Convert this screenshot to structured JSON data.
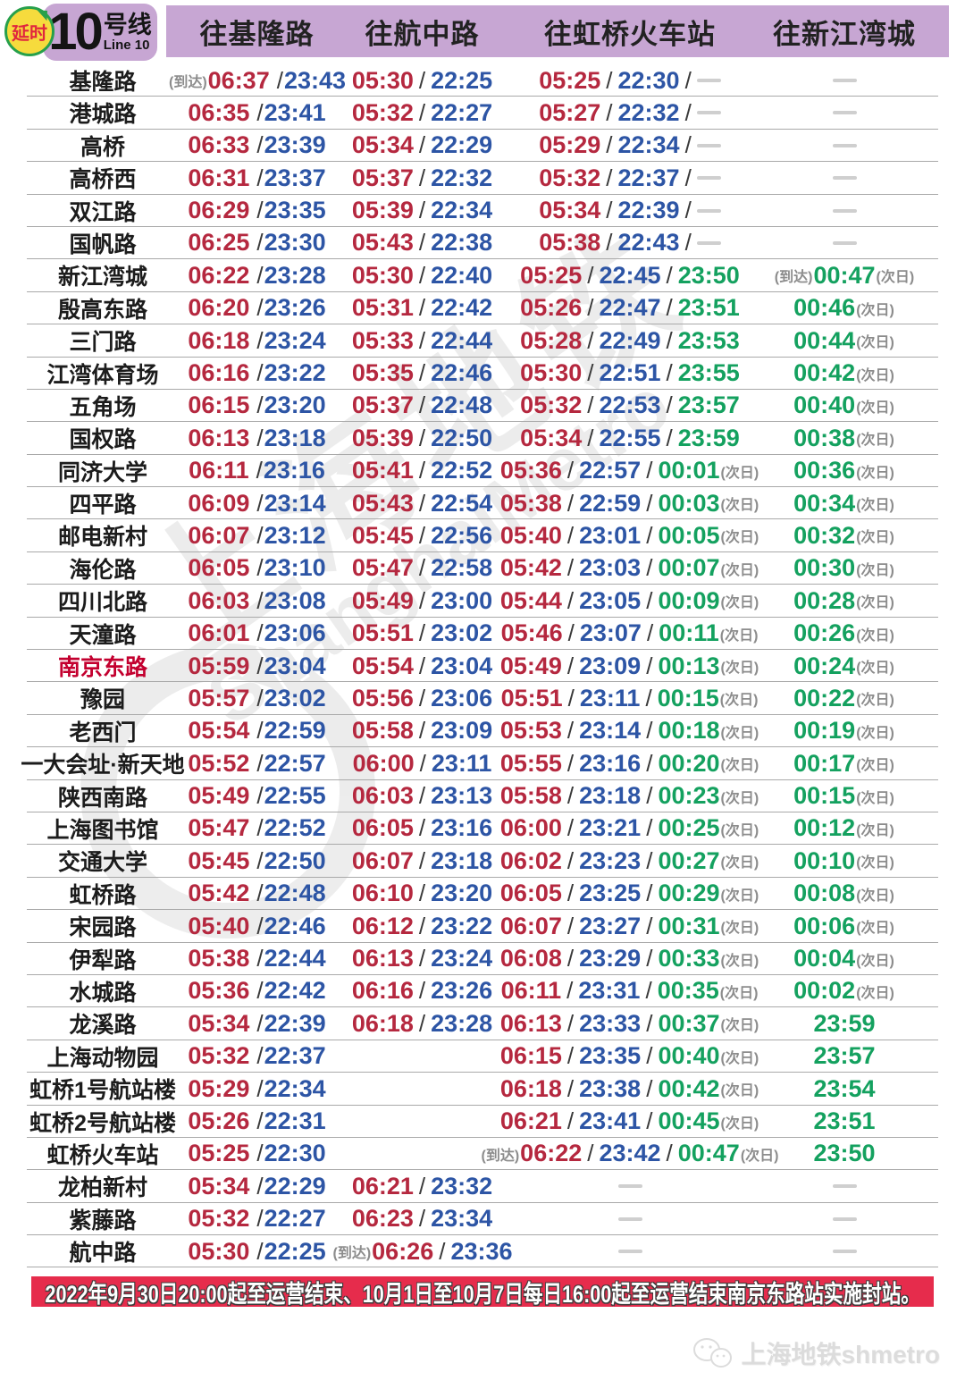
{
  "header": {
    "delay_badge": "延时",
    "line_number": "10",
    "line_name_cn": "号线",
    "line_name_en": "Line 10",
    "directions": {
      "d1": "往基隆路",
      "d2": "往航中路",
      "d3": "往虹桥火车站",
      "d4": "往新江湾城"
    }
  },
  "colors": {
    "line": "#C7A6D3",
    "first": "#B5283F",
    "last": "#2D55A5",
    "ext": "#14A15F",
    "notebg": "#E62C4C",
    "gray": "#8C8C8C"
  },
  "rows": [
    {
      "station": "基隆路",
      "c1": {
        "pre": "(到达)",
        "a": "06:37",
        "b": "23:43"
      },
      "c2": {
        "a": "05:30",
        "b": "22:25"
      },
      "c3": {
        "a": "05:25",
        "b": "22:30",
        "dash": true
      },
      "c4": {
        "dash": true
      }
    },
    {
      "station": "港城路",
      "c1": {
        "a": "06:35",
        "b": "23:41"
      },
      "c2": {
        "a": "05:32",
        "b": "22:27"
      },
      "c3": {
        "a": "05:27",
        "b": "22:32",
        "dash": true
      },
      "c4": {
        "dash": true
      }
    },
    {
      "station": "高桥",
      "c1": {
        "a": "06:33",
        "b": "23:39"
      },
      "c2": {
        "a": "05:34",
        "b": "22:29"
      },
      "c3": {
        "a": "05:29",
        "b": "22:34",
        "dash": true
      },
      "c4": {
        "dash": true
      }
    },
    {
      "station": "高桥西",
      "c1": {
        "a": "06:31",
        "b": "23:37"
      },
      "c2": {
        "a": "05:37",
        "b": "22:32"
      },
      "c3": {
        "a": "05:32",
        "b": "22:37",
        "dash": true
      },
      "c4": {
        "dash": true
      }
    },
    {
      "station": "双江路",
      "c1": {
        "a": "06:29",
        "b": "23:35"
      },
      "c2": {
        "a": "05:39",
        "b": "22:34"
      },
      "c3": {
        "a": "05:34",
        "b": "22:39",
        "dash": true
      },
      "c4": {
        "dash": true
      }
    },
    {
      "station": "国帆路",
      "c1": {
        "a": "06:25",
        "b": "23:30"
      },
      "c2": {
        "a": "05:43",
        "b": "22:38"
      },
      "c3": {
        "a": "05:38",
        "b": "22:43",
        "dash": true
      },
      "c4": {
        "dash": true
      }
    },
    {
      "station": "新江湾城",
      "c1": {
        "a": "06:22",
        "b": "23:28"
      },
      "c2": {
        "a": "05:30",
        "b": "22:40"
      },
      "c3": {
        "a": "05:25",
        "b": "22:45",
        "c": "23:50"
      },
      "c4": {
        "pre": "(到达)",
        "t": "00:47",
        "note": "(次日)"
      }
    },
    {
      "station": "殷高东路",
      "c1": {
        "a": "06:20",
        "b": "23:26"
      },
      "c2": {
        "a": "05:31",
        "b": "22:42"
      },
      "c3": {
        "a": "05:26",
        "b": "22:47",
        "c": "23:51"
      },
      "c4": {
        "t": "00:46",
        "note": "(次日)"
      }
    },
    {
      "station": "三门路",
      "c1": {
        "a": "06:18",
        "b": "23:24"
      },
      "c2": {
        "a": "05:33",
        "b": "22:44"
      },
      "c3": {
        "a": "05:28",
        "b": "22:49",
        "c": "23:53"
      },
      "c4": {
        "t": "00:44",
        "note": "(次日)"
      }
    },
    {
      "station": "江湾体育场",
      "c1": {
        "a": "06:16",
        "b": "23:22"
      },
      "c2": {
        "a": "05:35",
        "b": "22:46"
      },
      "c3": {
        "a": "05:30",
        "b": "22:51",
        "c": "23:55"
      },
      "c4": {
        "t": "00:42",
        "note": "(次日)"
      }
    },
    {
      "station": "五角场",
      "c1": {
        "a": "06:15",
        "b": "23:20"
      },
      "c2": {
        "a": "05:37",
        "b": "22:48"
      },
      "c3": {
        "a": "05:32",
        "b": "22:53",
        "c": "23:57"
      },
      "c4": {
        "t": "00:40",
        "note": "(次日)"
      }
    },
    {
      "station": "国权路",
      "c1": {
        "a": "06:13",
        "b": "23:18"
      },
      "c2": {
        "a": "05:39",
        "b": "22:50"
      },
      "c3": {
        "a": "05:34",
        "b": "22:55",
        "c": "23:59"
      },
      "c4": {
        "t": "00:38",
        "note": "(次日)"
      }
    },
    {
      "station": "同济大学",
      "c1": {
        "a": "06:11",
        "b": "23:16"
      },
      "c2": {
        "a": "05:41",
        "b": "22:52"
      },
      "c3": {
        "a": "05:36",
        "b": "22:57",
        "c": "00:01",
        "note": "(次日)"
      },
      "c4": {
        "t": "00:36",
        "note": "(次日)"
      }
    },
    {
      "station": "四平路",
      "c1": {
        "a": "06:09",
        "b": "23:14"
      },
      "c2": {
        "a": "05:43",
        "b": "22:54"
      },
      "c3": {
        "a": "05:38",
        "b": "22:59",
        "c": "00:03",
        "note": "(次日)"
      },
      "c4": {
        "t": "00:34",
        "note": "(次日)"
      }
    },
    {
      "station": "邮电新村",
      "c1": {
        "a": "06:07",
        "b": "23:12"
      },
      "c2": {
        "a": "05:45",
        "b": "22:56"
      },
      "c3": {
        "a": "05:40",
        "b": "23:01",
        "c": "00:05",
        "note": "(次日)"
      },
      "c4": {
        "t": "00:32",
        "note": "(次日)"
      }
    },
    {
      "station": "海伦路",
      "c1": {
        "a": "06:05",
        "b": "23:10"
      },
      "c2": {
        "a": "05:47",
        "b": "22:58"
      },
      "c3": {
        "a": "05:42",
        "b": "23:03",
        "c": "00:07",
        "note": "(次日)"
      },
      "c4": {
        "t": "00:30",
        "note": "(次日)"
      }
    },
    {
      "station": "四川北路",
      "c1": {
        "a": "06:03",
        "b": "23:08"
      },
      "c2": {
        "a": "05:49",
        "b": "23:00"
      },
      "c3": {
        "a": "05:44",
        "b": "23:05",
        "c": "00:09",
        "note": "(次日)"
      },
      "c4": {
        "t": "00:28",
        "note": "(次日)"
      }
    },
    {
      "station": "天潼路",
      "c1": {
        "a": "06:01",
        "b": "23:06"
      },
      "c2": {
        "a": "05:51",
        "b": "23:02"
      },
      "c3": {
        "a": "05:46",
        "b": "23:07",
        "c": "00:11",
        "note": "(次日)"
      },
      "c4": {
        "t": "00:26",
        "note": "(次日)"
      }
    },
    {
      "station": "南京东路",
      "hl": true,
      "c1": {
        "a": "05:59",
        "b": "23:04"
      },
      "c2": {
        "a": "05:54",
        "b": "23:04"
      },
      "c3": {
        "a": "05:49",
        "b": "23:09",
        "c": "00:13",
        "note": "(次日)"
      },
      "c4": {
        "t": "00:24",
        "note": "(次日)"
      }
    },
    {
      "station": "豫园",
      "c1": {
        "a": "05:57",
        "b": "23:02"
      },
      "c2": {
        "a": "05:56",
        "b": "23:06"
      },
      "c3": {
        "a": "05:51",
        "b": "23:11",
        "c": "00:15",
        "note": "(次日)"
      },
      "c4": {
        "t": "00:22",
        "note": "(次日)"
      }
    },
    {
      "station": "老西门",
      "c1": {
        "a": "05:54",
        "b": "22:59"
      },
      "c2": {
        "a": "05:58",
        "b": "23:09"
      },
      "c3": {
        "a": "05:53",
        "b": "23:14",
        "c": "00:18",
        "note": "(次日)"
      },
      "c4": {
        "t": "00:19",
        "note": "(次日)"
      }
    },
    {
      "station": "一大会址·新天地",
      "c1": {
        "a": "05:52",
        "b": "22:57"
      },
      "c2": {
        "a": "06:00",
        "b": "23:11"
      },
      "c3": {
        "a": "05:55",
        "b": "23:16",
        "c": "00:20",
        "note": "(次日)"
      },
      "c4": {
        "t": "00:17",
        "note": "(次日)"
      }
    },
    {
      "station": "陕西南路",
      "c1": {
        "a": "05:49",
        "b": "22:55"
      },
      "c2": {
        "a": "06:03",
        "b": "23:13"
      },
      "c3": {
        "a": "05:58",
        "b": "23:18",
        "c": "00:23",
        "note": "(次日)"
      },
      "c4": {
        "t": "00:15",
        "note": "(次日)"
      }
    },
    {
      "station": "上海图书馆",
      "c1": {
        "a": "05:47",
        "b": "22:52"
      },
      "c2": {
        "a": "06:05",
        "b": "23:16"
      },
      "c3": {
        "a": "06:00",
        "b": "23:21",
        "c": "00:25",
        "note": "(次日)"
      },
      "c4": {
        "t": "00:12",
        "note": "(次日)"
      }
    },
    {
      "station": "交通大学",
      "c1": {
        "a": "05:45",
        "b": "22:50"
      },
      "c2": {
        "a": "06:07",
        "b": "23:18"
      },
      "c3": {
        "a": "06:02",
        "b": "23:23",
        "c": "00:27",
        "note": "(次日)"
      },
      "c4": {
        "t": "00:10",
        "note": "(次日)"
      }
    },
    {
      "station": "虹桥路",
      "c1": {
        "a": "05:42",
        "b": "22:48"
      },
      "c2": {
        "a": "06:10",
        "b": "23:20"
      },
      "c3": {
        "a": "06:05",
        "b": "23:25",
        "c": "00:29",
        "note": "(次日)"
      },
      "c4": {
        "t": "00:08",
        "note": "(次日)"
      }
    },
    {
      "station": "宋园路",
      "c1": {
        "a": "05:40",
        "b": "22:46"
      },
      "c2": {
        "a": "06:12",
        "b": "23:22"
      },
      "c3": {
        "a": "06:07",
        "b": "23:27",
        "c": "00:31",
        "note": "(次日)"
      },
      "c4": {
        "t": "00:06",
        "note": "(次日)"
      }
    },
    {
      "station": "伊犁路",
      "c1": {
        "a": "05:38",
        "b": "22:44"
      },
      "c2": {
        "a": "06:13",
        "b": "23:24"
      },
      "c3": {
        "a": "06:08",
        "b": "23:29",
        "c": "00:33",
        "note": "(次日)"
      },
      "c4": {
        "t": "00:04",
        "note": "(次日)"
      }
    },
    {
      "station": "水城路",
      "c1": {
        "a": "05:36",
        "b": "22:42"
      },
      "c2": {
        "a": "06:16",
        "b": "23:26"
      },
      "c3": {
        "a": "06:11",
        "b": "23:31",
        "c": "00:35",
        "note": "(次日)"
      },
      "c4": {
        "t": "00:02",
        "note": "(次日)"
      }
    },
    {
      "station": "龙溪路",
      "c1": {
        "a": "05:34",
        "b": "22:39"
      },
      "c2": {
        "a": "06:18",
        "b": "23:28"
      },
      "c3": {
        "a": "06:13",
        "b": "23:33",
        "c": "00:37",
        "note": "(次日)"
      },
      "c4": {
        "t": "23:59"
      }
    },
    {
      "station": "上海动物园",
      "c1": {
        "a": "05:32",
        "b": "22:37"
      },
      "c2": null,
      "c3": {
        "a": "06:15",
        "b": "23:35",
        "c": "00:40",
        "note": "(次日)"
      },
      "c4": {
        "t": "23:57"
      }
    },
    {
      "station": "虹桥1号航站楼",
      "c1": {
        "a": "05:29",
        "b": "22:34"
      },
      "c2": null,
      "c3": {
        "a": "06:18",
        "b": "23:38",
        "c": "00:42",
        "note": "(次日)"
      },
      "c4": {
        "t": "23:54"
      }
    },
    {
      "station": "虹桥2号航站楼",
      "c1": {
        "a": "05:26",
        "b": "22:31"
      },
      "c2": null,
      "c3": {
        "a": "06:21",
        "b": "23:41",
        "c": "00:45",
        "note": "(次日)"
      },
      "c4": {
        "t": "23:51"
      }
    },
    {
      "station": "虹桥火车站",
      "c1": {
        "a": "05:25",
        "b": "22:30"
      },
      "c2": null,
      "c3": {
        "pre": "(到达)",
        "a": "06:22",
        "b": "23:42",
        "c": "00:47",
        "note": "(次日)"
      },
      "c4": {
        "t": "23:50"
      }
    },
    {
      "station": "龙柏新村",
      "c1": {
        "a": "05:34",
        "b": "22:29"
      },
      "c2": {
        "a": "06:21",
        "b": "23:32"
      },
      "c3": {
        "dash": true
      },
      "c4": {
        "dash": true
      }
    },
    {
      "station": "紫藤路",
      "c1": {
        "a": "05:32",
        "b": "22:27"
      },
      "c2": {
        "a": "06:23",
        "b": "23:34"
      },
      "c3": {
        "dash": true
      },
      "c4": {
        "dash": true
      }
    },
    {
      "station": "航中路",
      "c1": {
        "a": "05:30",
        "b": "22:25"
      },
      "c2": {
        "pre": "(到达)",
        "a": "06:26",
        "b": "23:36"
      },
      "c3": {
        "dash": true
      },
      "c4": {
        "dash": true
      }
    }
  ],
  "notice": "2022年9月30日20:00起至运营结束、10月1日至10月7日每日16:00起至运营结束南京东路站实施封站。",
  "watermark": {
    "line1": "上海地铁",
    "line2": "ShanghaiMetro"
  },
  "footer": {
    "brand": "上海地铁shmetro"
  }
}
